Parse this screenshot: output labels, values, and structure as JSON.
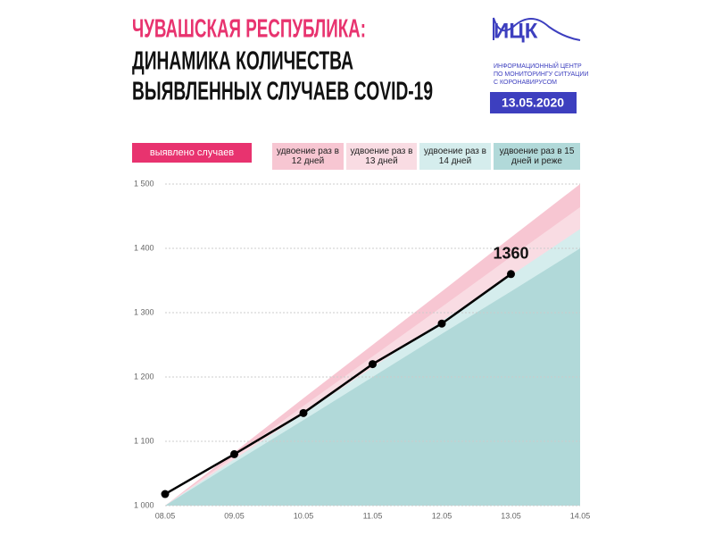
{
  "header": {
    "logo": "ИЦК",
    "logo_lines": [
      "ИНФОРМАЦИОННЫЙ ЦЕНТР",
      "ПО МОНИТОРИНГУ СИТУАЦИИ",
      "С КОРОНАВИРУСОМ"
    ],
    "date": "13.05.2020"
  },
  "chart_data": {
    "type": "line",
    "title": "ЧУВАШСКАЯ РЕСПУБЛИКА:",
    "subtitle": [
      "ДИНАМИКА КОЛИЧЕСТВА",
      "ВЫЯВЛЕННЫХ СЛУЧАЕВ COVID-19"
    ],
    "categories": [
      "08.05",
      "09.05",
      "10.05",
      "11.05",
      "12.05",
      "13.05",
      "14.05"
    ],
    "series": [
      {
        "name": "выявлено случаев",
        "color": "#000000",
        "legend_color": "#e8336f",
        "values": [
          1018,
          1080,
          1144,
          1220,
          1283,
          1360,
          null
        ]
      }
    ],
    "bands": [
      {
        "name": "удвоение раз в 12 дней",
        "color": "#f7c6d2",
        "values": [
          1000,
          1083,
          1167,
          1250,
          1333,
          1417,
          1500
        ]
      },
      {
        "name": "удвоение раз в 13 дней",
        "color": "#f9dce3",
        "values": [
          1000,
          1077,
          1155,
          1232,
          1309,
          1387,
          1464
        ]
      },
      {
        "name": "удвоение раз в 14 дней",
        "color": "#d5eded",
        "values": [
          1000,
          1072,
          1143,
          1215,
          1287,
          1358,
          1430
        ]
      },
      {
        "name": "удвоение раз в 15 дней и реже",
        "color": "#b1d9d9",
        "values": [
          1000,
          1067,
          1133,
          1200,
          1267,
          1333,
          1400
        ]
      }
    ],
    "ylim": [
      1000,
      1500
    ],
    "yticks": [
      {
        "value": 1000,
        "label": "1 000"
      },
      {
        "value": 1100,
        "label": "1 100"
      },
      {
        "value": 1200,
        "label": "1 200"
      },
      {
        "value": 1300,
        "label": "1 300"
      },
      {
        "value": 1400,
        "label": "1 400"
      },
      {
        "value": 1500,
        "label": "1 500"
      }
    ],
    "grid": true
  }
}
